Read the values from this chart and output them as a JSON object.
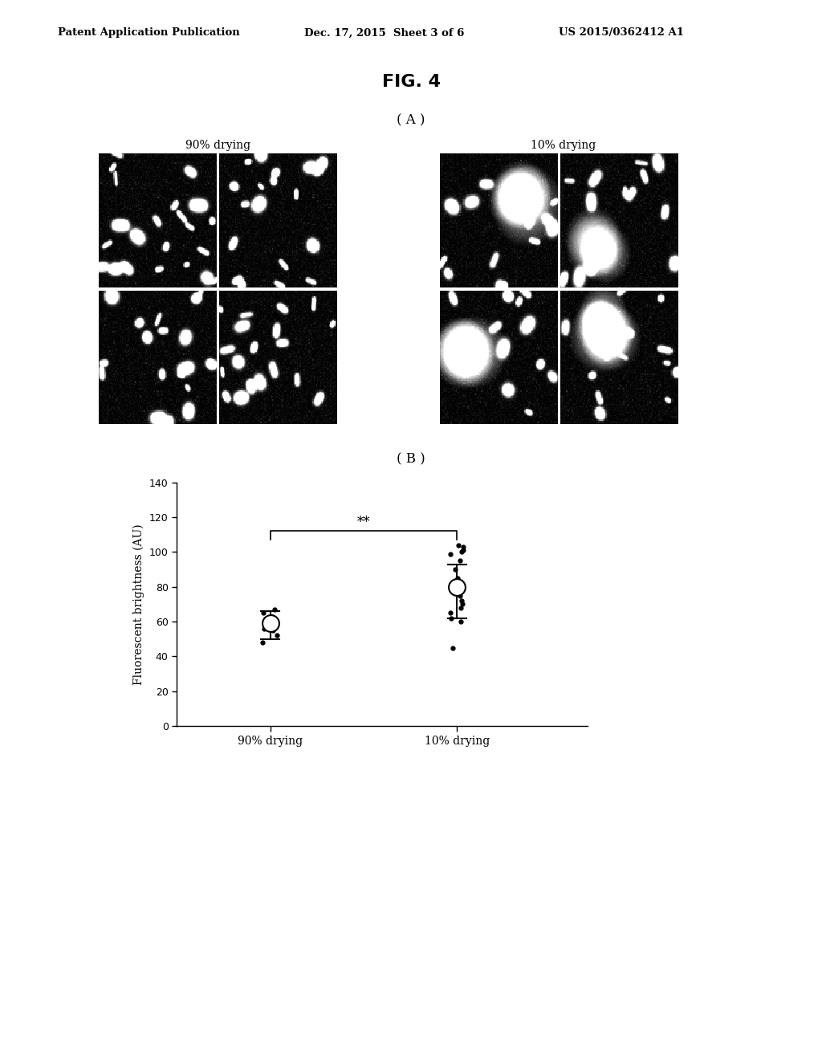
{
  "header_left": "Patent Application Publication",
  "header_mid": "Dec. 17, 2015  Sheet 3 of 6",
  "header_right": "US 2015/0362412 A1",
  "fig_label": "FIG. 4",
  "panel_a_label": "( A )",
  "panel_b_label": "( B )",
  "label_90_drying": "90% drying",
  "label_10_drying": "10% drying",
  "ylabel": "Fluorescent brightness (AU)",
  "xlabel_90": "90% drying",
  "xlabel_10": "10% drying",
  "ylim": [
    0,
    140
  ],
  "yticks": [
    0,
    20,
    40,
    60,
    80,
    100,
    120,
    140
  ],
  "group1_dots": [
    67,
    65,
    63,
    62,
    61,
    60,
    59,
    58,
    57,
    56,
    55,
    52,
    48
  ],
  "group1_mean": 59,
  "group1_sd_low": 50,
  "group1_sd_high": 66,
  "group2_dots": [
    104,
    103,
    101,
    100,
    99,
    95,
    90,
    85,
    82,
    80,
    78,
    75,
    72,
    70,
    68,
    65,
    62,
    60,
    45
  ],
  "group2_mean": 80,
  "group2_sd_low": 62,
  "group2_sd_high": 93,
  "significance_label": "**",
  "background_color": "#ffffff",
  "dot_color": "#000000",
  "mean_circle_color": "#ffffff",
  "mean_circle_edgecolor": "#000000"
}
